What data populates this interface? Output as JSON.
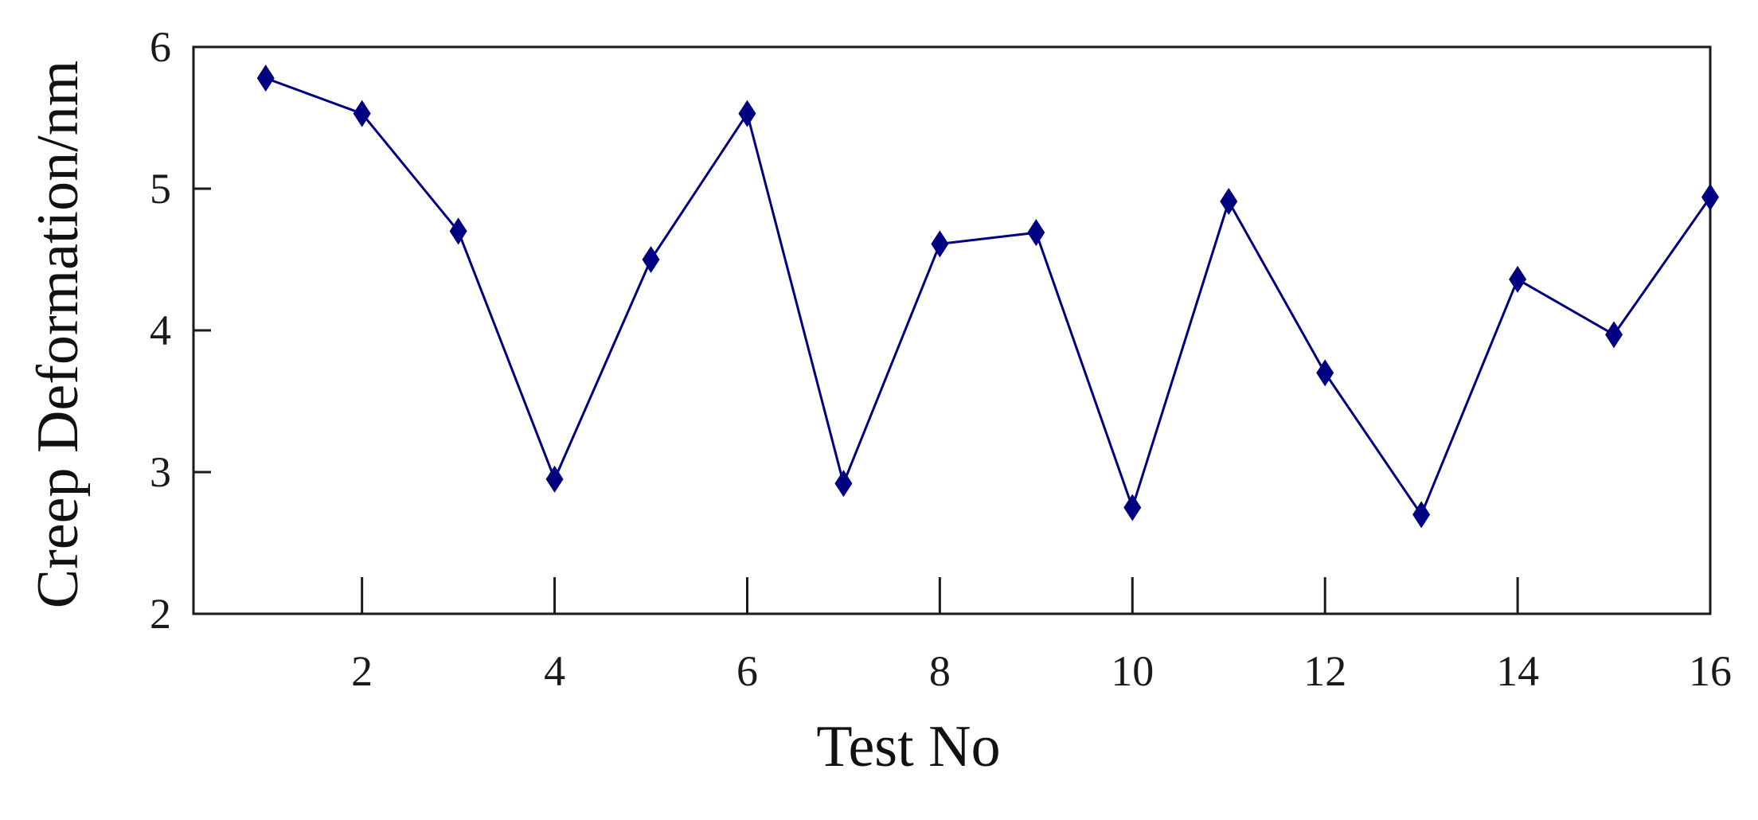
{
  "chart_data": {
    "type": "line",
    "title": "",
    "xlabel": "Test No",
    "ylabel": "Creep Deformation/nm",
    "xlim": [
      0.25,
      16
    ],
    "ylim": [
      2,
      6
    ],
    "x_ticks": [
      2,
      4,
      6,
      8,
      10,
      12,
      14,
      16
    ],
    "y_ticks": [
      2,
      3,
      4,
      5,
      6
    ],
    "grid": false,
    "legend": "none",
    "series": [
      {
        "color": "#000080",
        "marker": "diamond",
        "x": [
          1,
          2,
          3,
          4,
          5,
          6,
          7,
          8,
          9,
          10,
          11,
          12,
          13,
          14,
          15,
          16
        ],
        "y": [
          5.78,
          5.53,
          4.7,
          2.95,
          4.5,
          5.53,
          2.92,
          4.61,
          4.69,
          2.75,
          4.91,
          3.7,
          2.7,
          4.36,
          3.97,
          4.94
        ]
      }
    ]
  }
}
